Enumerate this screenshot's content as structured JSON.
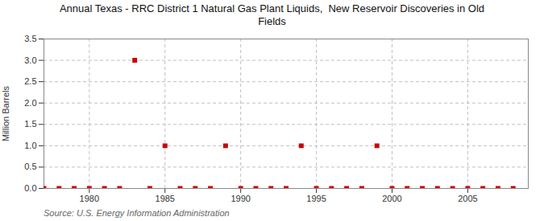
{
  "chart_data": {
    "type": "scatter",
    "title": "Annual Texas - RRC District 1 Natural Gas Plant Liquids,  New Reservoir Discoveries in Old\nFields",
    "ylabel": "Million Barrels",
    "annotations": [
      "Source: U.S. Energy Information Administration"
    ],
    "x": [
      1977,
      1978,
      1979,
      1980,
      1981,
      1982,
      1983,
      1984,
      1985,
      1986,
      1987,
      1988,
      1989,
      1990,
      1991,
      1992,
      1993,
      1994,
      1995,
      1996,
      1997,
      1998,
      1999,
      2000,
      2001,
      2002,
      2003,
      2004,
      2005,
      2006,
      2007,
      2008
    ],
    "values": [
      0.0,
      0.0,
      0.0,
      0.0,
      0.0,
      0.0,
      3.0,
      0.0,
      1.0,
      0.0,
      0.0,
      0.0,
      1.0,
      0.0,
      0.0,
      0.0,
      0.0,
      1.0,
      0.0,
      0.0,
      0.0,
      0.0,
      1.0,
      0.0,
      0.0,
      0.0,
      0.0,
      0.0,
      0.0,
      0.0,
      0.0,
      0.0
    ],
    "color": "#cc0000",
    "marker": "square",
    "xlim": [
      1977,
      2009
    ],
    "ylim": [
      0.0,
      3.5
    ],
    "xticks": [
      1980,
      1985,
      1990,
      1995,
      2000,
      2005
    ],
    "yticks": [
      {
        "value": 0.0,
        "label": "0.0"
      },
      {
        "value": 0.5,
        "label": "0.5"
      },
      {
        "value": 1.0,
        "label": "1.0"
      },
      {
        "value": 1.5,
        "label": "1.5"
      },
      {
        "value": 2.0,
        "label": "2.0"
      },
      {
        "value": 2.5,
        "label": "2.5"
      },
      {
        "value": 3.0,
        "label": "3.0"
      },
      {
        "value": 3.5,
        "label": "3.5"
      }
    ],
    "grid": true
  }
}
